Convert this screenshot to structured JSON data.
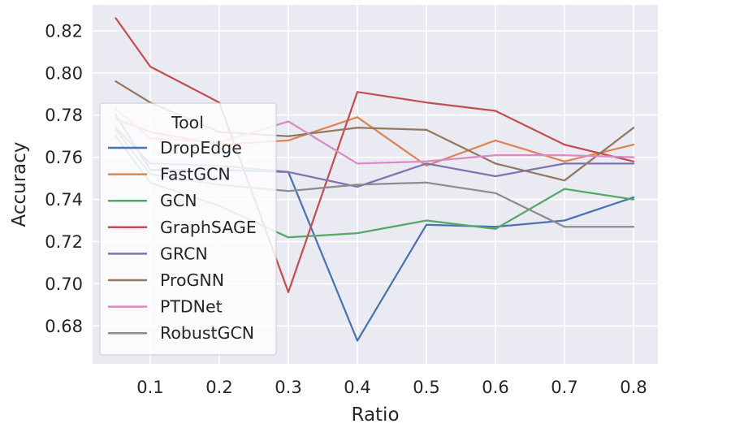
{
  "chart_data": {
    "type": "line",
    "title": "",
    "xlabel": "Ratio",
    "ylabel": "Accuracy",
    "legend_title": "Tool",
    "legend_position": "upper left",
    "grid": true,
    "x": [
      0.05,
      0.1,
      0.2,
      0.3,
      0.4,
      0.5,
      0.6,
      0.7,
      0.8
    ],
    "xticks": [
      "0.1",
      "0.2",
      "0.3",
      "0.4",
      "0.5",
      "0.6",
      "0.7",
      "0.8"
    ],
    "yticks": [
      "0.68",
      "0.70",
      "0.72",
      "0.74",
      "0.76",
      "0.78",
      "0.80",
      "0.82"
    ],
    "xlim": [
      0.0165,
      0.8353
    ],
    "ylim": [
      0.662,
      0.8323
    ],
    "series": [
      {
        "name": "DropEdge",
        "color": "#4C72B0",
        "values": [
          0.78,
          0.754,
          0.754,
          0.753,
          0.673,
          0.728,
          0.727,
          0.73,
          0.741
        ]
      },
      {
        "name": "FastGCN",
        "color": "#DD8452",
        "values": [
          0.778,
          0.772,
          0.766,
          0.768,
          0.779,
          0.756,
          0.768,
          0.758,
          0.766
        ]
      },
      {
        "name": "GCN",
        "color": "#55A868",
        "values": [
          0.77,
          0.748,
          0.737,
          0.722,
          0.724,
          0.73,
          0.726,
          0.745,
          0.74
        ]
      },
      {
        "name": "GraphSAGE",
        "color": "#C44E52",
        "values": [
          0.826,
          0.803,
          0.786,
          0.696,
          0.791,
          0.786,
          0.782,
          0.766,
          0.758
        ]
      },
      {
        "name": "GRCN",
        "color": "#8172B3",
        "values": [
          0.774,
          0.757,
          0.756,
          0.753,
          0.746,
          0.757,
          0.751,
          0.757,
          0.757
        ]
      },
      {
        "name": "ProGNN",
        "color": "#937860",
        "values": [
          0.796,
          0.786,
          0.772,
          0.77,
          0.774,
          0.773,
          0.757,
          0.749,
          0.774
        ]
      },
      {
        "name": "PTDNet",
        "color": "#DA8BC3",
        "values": [
          0.783,
          0.769,
          0.767,
          0.777,
          0.757,
          0.758,
          0.761,
          0.761,
          0.76
        ]
      },
      {
        "name": "RobustGCN",
        "color": "#8C8C8C",
        "values": [
          0.773,
          0.752,
          0.747,
          0.744,
          0.747,
          0.748,
          0.743,
          0.727,
          0.727
        ]
      }
    ],
    "colors": {
      "plot_background": "#EAEAF2",
      "grid": "#FFFFFF",
      "text": "#262626",
      "legend_face": "#FFFFFF",
      "legend_edge": "#CCCCD6"
    }
  }
}
